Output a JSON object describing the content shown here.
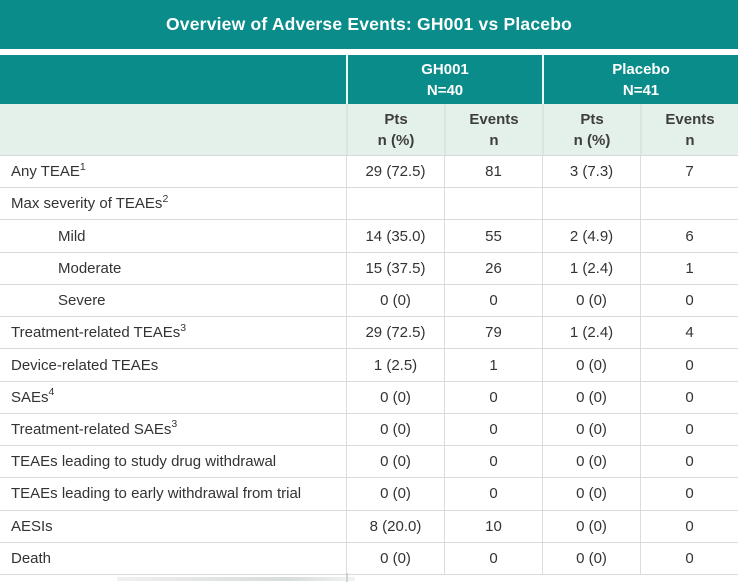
{
  "colors": {
    "teal_header": "#098c8a",
    "header_text": "#ffffff",
    "subheader_bg": "#e4f0ea",
    "subheader_text": "#3e3e3e",
    "body_text": "#333333",
    "grid_line": "#dadada"
  },
  "chart_data": {
    "type": "table",
    "title": "Overview of Adverse Events: GH001 vs Placebo",
    "column_groups": [
      {
        "label": "GH001",
        "n": "N=40"
      },
      {
        "label": "Placebo",
        "n": "N=41"
      }
    ],
    "sub_columns": [
      {
        "line1": "Pts",
        "line2": "n (%)"
      },
      {
        "line1": "Events",
        "line2": "n"
      },
      {
        "line1": "Pts",
        "line2": "n (%)"
      },
      {
        "line1": "Events",
        "line2": "n"
      }
    ],
    "rows": [
      {
        "label": "Any TEAE",
        "sup": "1",
        "indent": false,
        "values": [
          "29 (72.5)",
          "81",
          "3 (7.3)",
          "7"
        ]
      },
      {
        "label": "Max severity of TEAEs",
        "sup": "2",
        "indent": false,
        "values": [
          "",
          "",
          "",
          ""
        ]
      },
      {
        "label": "Mild",
        "sup": "",
        "indent": true,
        "values": [
          "14 (35.0)",
          "55",
          "2 (4.9)",
          "6"
        ]
      },
      {
        "label": "Moderate",
        "sup": "",
        "indent": true,
        "values": [
          "15 (37.5)",
          "26",
          "1 (2.4)",
          "1"
        ]
      },
      {
        "label": "Severe",
        "sup": "",
        "indent": true,
        "values": [
          "0 (0)",
          "0",
          "0 (0)",
          "0"
        ]
      },
      {
        "label": "Treatment-related TEAEs",
        "sup": "3",
        "indent": false,
        "values": [
          "29 (72.5)",
          "79",
          "1 (2.4)",
          "4"
        ]
      },
      {
        "label": "Device-related TEAEs",
        "sup": "",
        "indent": false,
        "values": [
          "1 (2.5)",
          "1",
          "0 (0)",
          "0"
        ]
      },
      {
        "label": "SAEs",
        "sup": "4",
        "indent": false,
        "values": [
          "0 (0)",
          "0",
          "0 (0)",
          "0"
        ]
      },
      {
        "label": "Treatment-related SAEs",
        "sup": "3",
        "indent": false,
        "values": [
          "0 (0)",
          "0",
          "0 (0)",
          "0"
        ]
      },
      {
        "label": "TEAEs leading to study drug withdrawal",
        "sup": "",
        "indent": false,
        "values": [
          "0 (0)",
          "0",
          "0 (0)",
          "0"
        ]
      },
      {
        "label": "TEAEs leading to early withdrawal from trial",
        "sup": "",
        "indent": false,
        "values": [
          "0 (0)",
          "0",
          "0 (0)",
          "0"
        ]
      },
      {
        "label": "AESIs",
        "sup": "",
        "indent": false,
        "values": [
          "8 (20.0)",
          "10",
          "0 (0)",
          "0"
        ]
      },
      {
        "label": "Death",
        "sup": "",
        "indent": false,
        "values": [
          "0 (0)",
          "0",
          "0 (0)",
          "0"
        ]
      }
    ]
  }
}
